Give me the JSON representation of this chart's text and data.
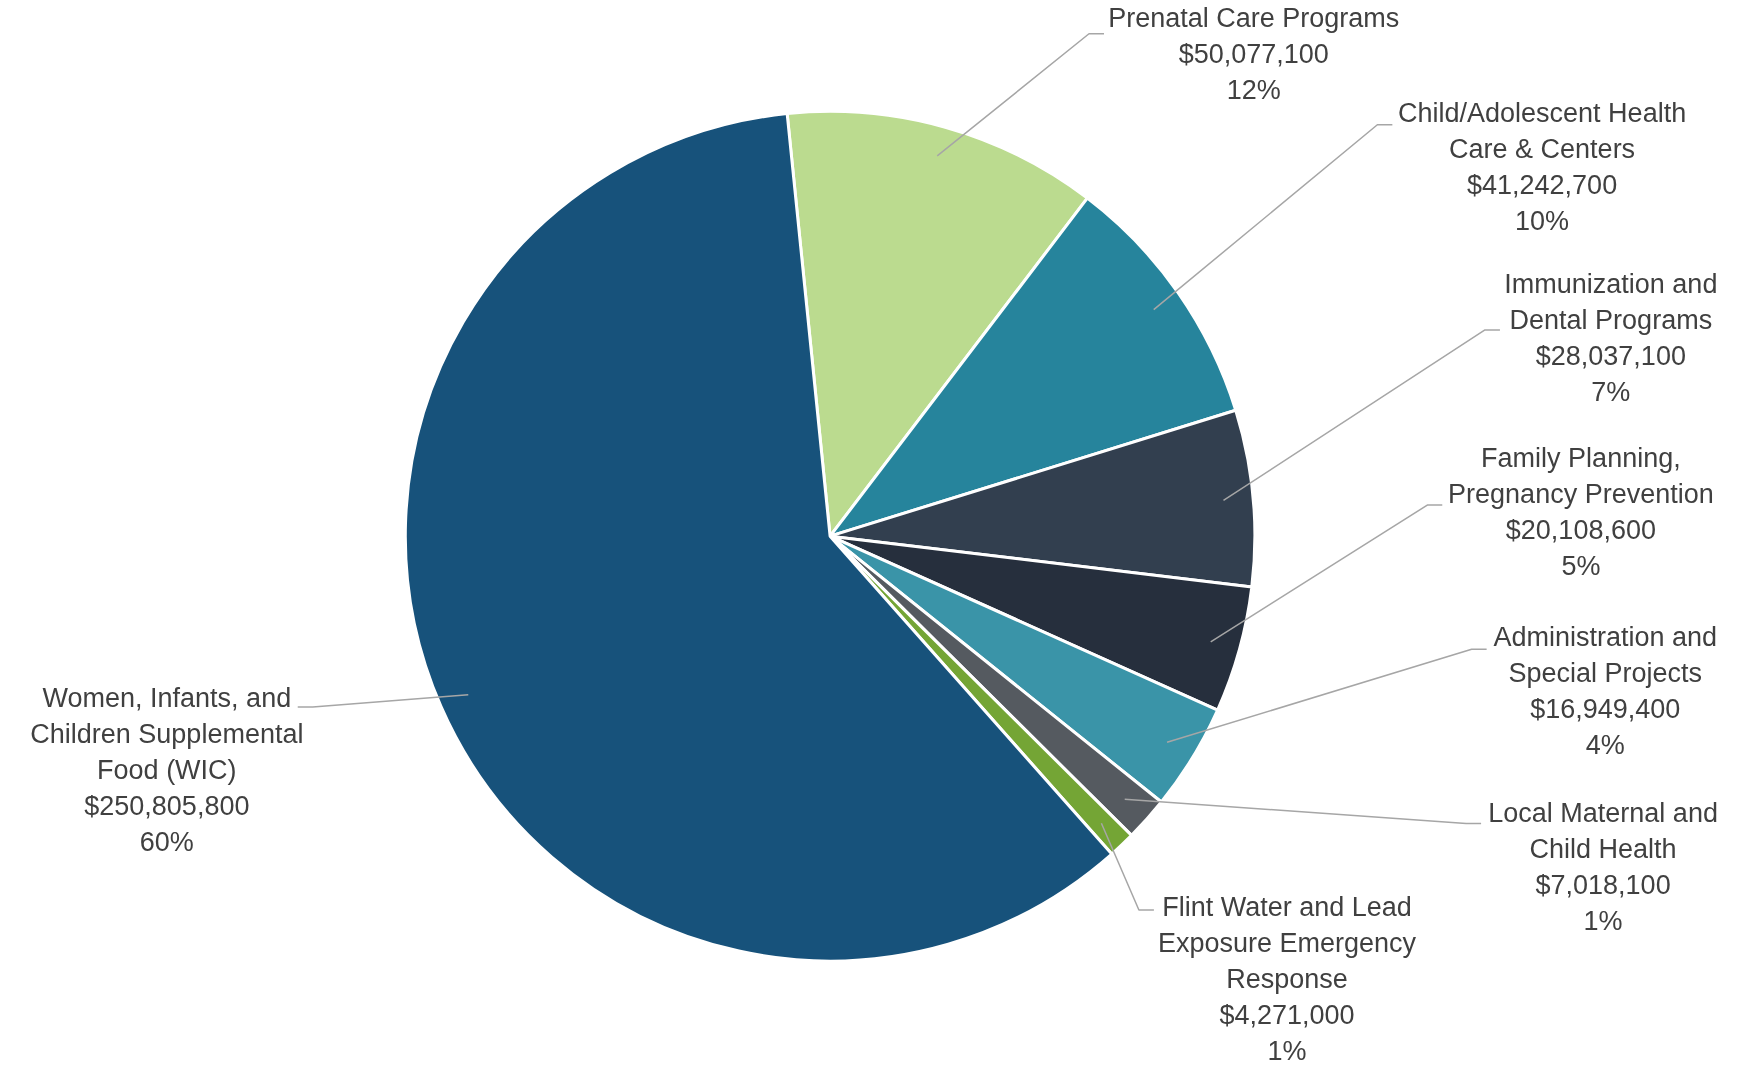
{
  "chart_data": {
    "type": "pie",
    "categories": [
      "Prenatal Care Programs",
      "Child/Adolescent Health\nCare & Centers",
      "Immunization and\nDental Programs",
      "Family Planning,\nPregnancy Prevention",
      "Administration and\nSpecial Projects",
      "Local Maternal and\nChild Health",
      "Flint Water and Lead\nExposure Emergency\nResponse",
      "Women, Infants, and\nChildren Supplemental\nFood (WIC)"
    ],
    "values": [
      50077100,
      41242700,
      28037100,
      20108600,
      16949400,
      7018100,
      4271000,
      250805800
    ],
    "value_labels": [
      "$50,077,100\n12%",
      "$41,242,700\n10%",
      "$28,037,100\n7%",
      "$20,108,600\n5%",
      "$16,949,400\n4%",
      "$7,018,100\n1%",
      "$4,271,000\n1%",
      "$250,805,800\n60%"
    ],
    "colors": [
      "#bbdb8f",
      "#26849c",
      "#323f4f",
      "#262f3d",
      "#3a94a8",
      "#555a60",
      "#74a535",
      "#17527b"
    ]
  }
}
